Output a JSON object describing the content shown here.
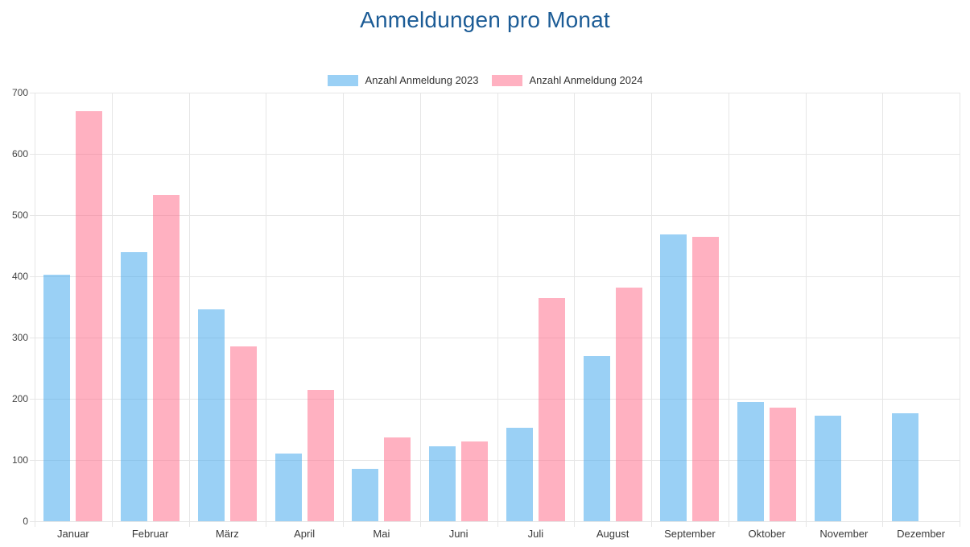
{
  "title": "Anmeldungen pro Monat",
  "legend": [
    {
      "label": "Anzahl Anmeldung 2023",
      "color": "rgba(54,162,235,0.5)",
      "color_hex": "#9AD0F5"
    },
    {
      "label": "Anzahl Anmeldung 2024",
      "color": "rgba(255,99,132,0.5)",
      "color_hex": "#FFB1C1"
    }
  ],
  "chart_data": {
    "type": "bar",
    "title": "Anmeldungen pro Monat",
    "categories": [
      "Januar",
      "Februar",
      "März",
      "April",
      "Mai",
      "Juni",
      "Juli",
      "August",
      "September",
      "Oktober",
      "November",
      "Dezember"
    ],
    "series": [
      {
        "name": "Anzahl Anmeldung 2023",
        "color": "rgba(54,162,235,0.5)",
        "values": [
          403,
          440,
          346,
          110,
          85,
          122,
          152,
          270,
          469,
          195,
          173,
          176
        ]
      },
      {
        "name": "Anzahl Anmeldung 2024",
        "color": "rgba(255,99,132,0.5)",
        "values": [
          670,
          533,
          285,
          215,
          137,
          130,
          365,
          381,
          465,
          185,
          0,
          0
        ]
      }
    ],
    "xlabel": "",
    "ylabel": "",
    "ylim": [
      0,
      700
    ],
    "yticks": [
      0,
      100,
      200,
      300,
      400,
      500,
      600,
      700
    ],
    "grid": true,
    "legend_position": "top"
  },
  "colors": {
    "title": "#1c5c96",
    "grid": "#e6e6e6",
    "axis_text": "#444444",
    "background": "#ffffff"
  }
}
